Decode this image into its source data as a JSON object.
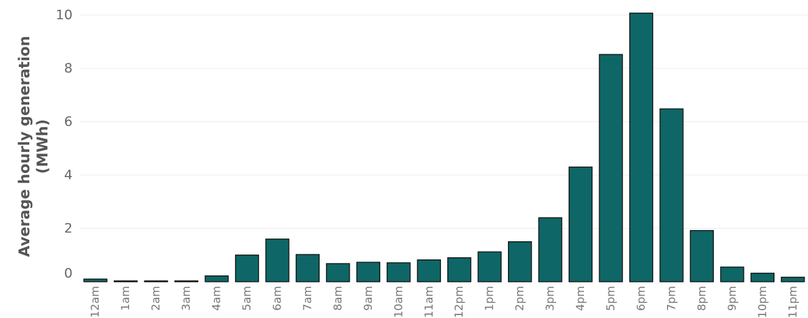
{
  "chart_data": {
    "type": "bar",
    "title": "",
    "xlabel": "",
    "ylabel_lines": [
      "Average hourly generation",
      "(MWh)"
    ],
    "categories": [
      "12am",
      "1am",
      "2am",
      "3am",
      "4am",
      "5am",
      "6am",
      "7am",
      "8am",
      "9am",
      "10am",
      "11am",
      "12pm",
      "1pm",
      "2pm",
      "3pm",
      "4pm",
      "5pm",
      "6pm",
      "7pm",
      "8pm",
      "9pm",
      "10pm",
      "11pm"
    ],
    "values": [
      0.1,
      0.0,
      0.0,
      0.02,
      0.22,
      1.0,
      1.6,
      1.02,
      0.68,
      0.73,
      0.71,
      0.82,
      0.9,
      1.12,
      1.5,
      2.4,
      4.3,
      8.52,
      10.07,
      6.48,
      1.92,
      0.55,
      0.32,
      0.17
    ],
    "yticks": [
      0,
      2,
      4,
      6,
      8,
      10
    ],
    "ylim": [
      0,
      10.3
    ],
    "grid": true,
    "bar_color": "#0f6666"
  }
}
